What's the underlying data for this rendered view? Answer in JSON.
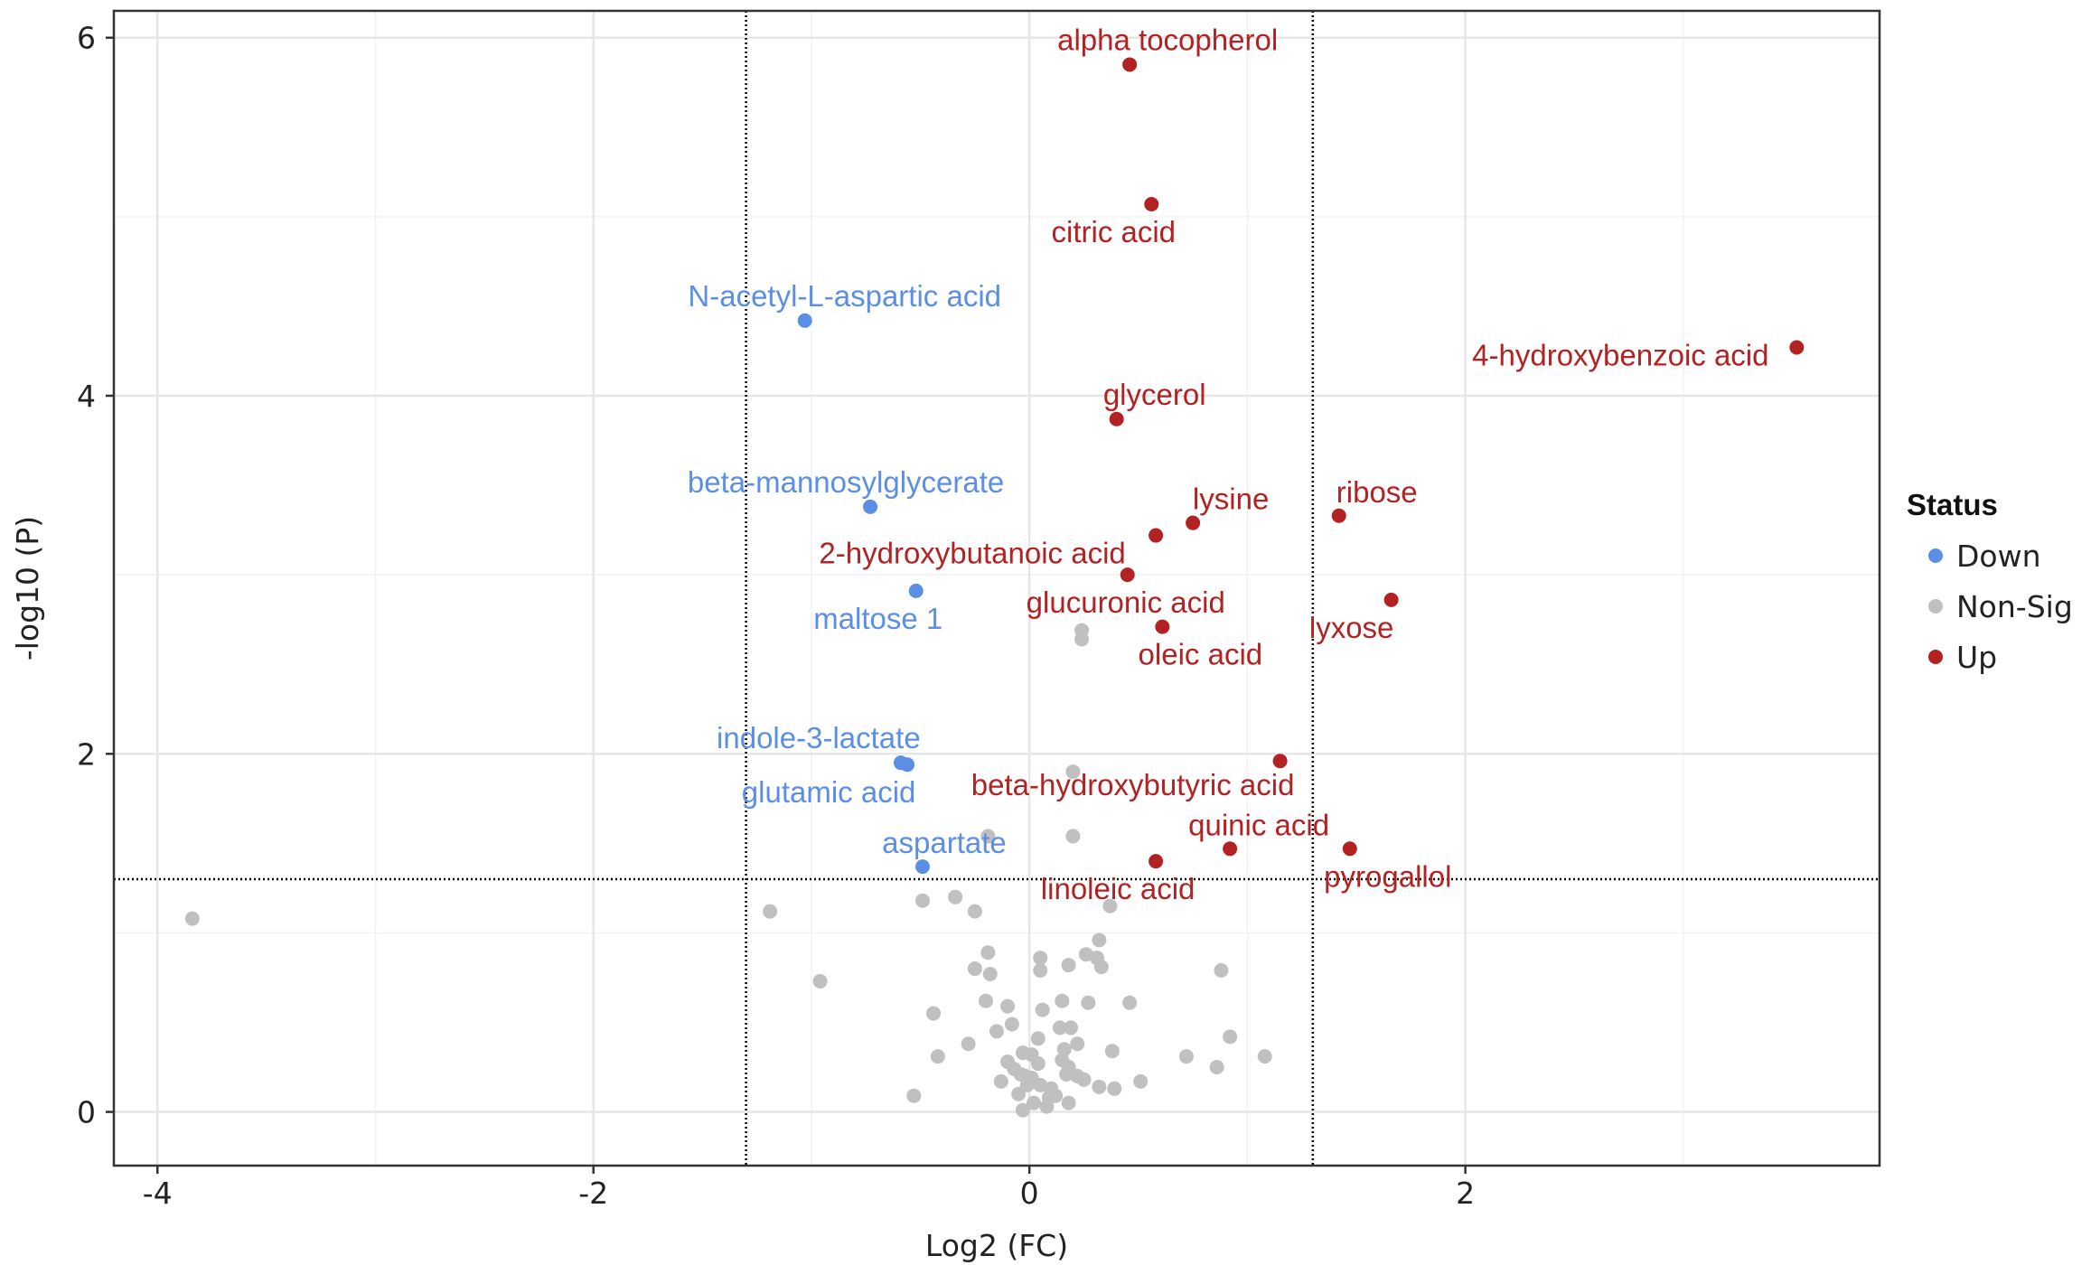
{
  "chart_data": {
    "type": "scatter",
    "xlabel": "Log2 (FC)",
    "ylabel": "-log10 (P)",
    "xlim": [
      -4.2,
      3.9
    ],
    "ylim": [
      -0.3,
      6.15
    ],
    "x_ticks": [
      -4,
      -2,
      0,
      2
    ],
    "y_ticks": [
      0,
      2,
      4,
      6
    ],
    "x_tick_labels": [
      "-4",
      "-2",
      "0",
      "2"
    ],
    "y_tick_labels": [
      "0",
      "2",
      "4",
      "6"
    ],
    "grid": true,
    "fc_threshold_lines": [
      -1.3,
      1.3
    ],
    "p_threshold_line": 1.3,
    "legend": {
      "title": "Status",
      "placement": "right",
      "entries": [
        {
          "label": "Down",
          "color": "#5b8fe6"
        },
        {
          "label": "Non-Sig",
          "color": "#c0c0c0"
        },
        {
          "label": "Up",
          "color": "#b22222"
        }
      ]
    },
    "colors": {
      "Down": "#5b8fe6",
      "Non-Sig": "#c0c0c0",
      "Up": "#b22222"
    },
    "series": [
      {
        "name": "Up",
        "points": [
          {
            "x": 0.46,
            "y": 5.85,
            "label": "alpha tocopherol"
          },
          {
            "x": 0.56,
            "y": 5.07,
            "label": "citric acid"
          },
          {
            "x": 3.52,
            "y": 4.27,
            "label": "4-hydroxybenzoic acid"
          },
          {
            "x": 0.4,
            "y": 3.87,
            "label": "glycerol"
          },
          {
            "x": 1.42,
            "y": 3.33,
            "label": "ribose"
          },
          {
            "x": 0.75,
            "y": 3.29,
            "label": "lysine"
          },
          {
            "x": 0.58,
            "y": 3.22,
            "label": "2-hydroxybutanoic acid"
          },
          {
            "x": 0.45,
            "y": 3.0,
            "label": "glucuronic acid"
          },
          {
            "x": 1.66,
            "y": 2.86,
            "label": "lyxose"
          },
          {
            "x": 0.61,
            "y": 2.71,
            "label": "oleic acid"
          },
          {
            "x": 1.15,
            "y": 1.96,
            "label": "beta-hydroxybutyric acid"
          },
          {
            "x": 0.92,
            "y": 1.47,
            "label": "quinic acid"
          },
          {
            "x": 1.47,
            "y": 1.47,
            "label": "pyrogallol"
          },
          {
            "x": 0.58,
            "y": 1.4,
            "label": "linoleic acid"
          }
        ]
      },
      {
        "name": "Down",
        "points": [
          {
            "x": -1.03,
            "y": 4.42,
            "label": "N-acetyl-L-aspartic acid"
          },
          {
            "x": -0.73,
            "y": 3.38,
            "label": "beta-mannosylglycerate"
          },
          {
            "x": -0.52,
            "y": 2.91,
            "label": "maltose 1"
          },
          {
            "x": -0.59,
            "y": 1.95,
            "label": "indole-3-lactate"
          },
          {
            "x": -0.56,
            "y": 1.94,
            "label": "glutamic acid"
          },
          {
            "x": -0.49,
            "y": 1.37,
            "label": "aspartate"
          }
        ]
      },
      {
        "name": "Non-Sig",
        "points": [
          {
            "x": -3.84,
            "y": 1.08
          },
          {
            "x": -1.19,
            "y": 1.12
          },
          {
            "x": -0.96,
            "y": 0.73
          },
          {
            "x": -0.49,
            "y": 1.18
          },
          {
            "x": -0.34,
            "y": 1.2
          },
          {
            "x": -0.25,
            "y": 1.12
          },
          {
            "x": 0.24,
            "y": 2.69
          },
          {
            "x": 0.24,
            "y": 2.64
          },
          {
            "x": 0.2,
            "y": 1.9
          },
          {
            "x": -0.19,
            "y": 1.54
          },
          {
            "x": 0.2,
            "y": 1.54
          },
          {
            "x": 0.37,
            "y": 1.15
          },
          {
            "x": 0.32,
            "y": 0.96
          },
          {
            "x": 0.26,
            "y": 0.88
          },
          {
            "x": 0.31,
            "y": 0.86
          },
          {
            "x": 0.33,
            "y": 0.81
          },
          {
            "x": 0.18,
            "y": 0.82
          },
          {
            "x": 0.05,
            "y": 0.86
          },
          {
            "x": 0.05,
            "y": 0.79
          },
          {
            "x": -0.19,
            "y": 0.89
          },
          {
            "x": -0.25,
            "y": 0.8
          },
          {
            "x": -0.18,
            "y": 0.77
          },
          {
            "x": 0.88,
            "y": 0.79
          },
          {
            "x": -0.44,
            "y": 0.55
          },
          {
            "x": -0.2,
            "y": 0.62
          },
          {
            "x": -0.1,
            "y": 0.59
          },
          {
            "x": 0.06,
            "y": 0.57
          },
          {
            "x": 0.15,
            "y": 0.62
          },
          {
            "x": 0.27,
            "y": 0.61
          },
          {
            "x": 0.46,
            "y": 0.61
          },
          {
            "x": -0.08,
            "y": 0.49
          },
          {
            "x": -0.15,
            "y": 0.45
          },
          {
            "x": 0.14,
            "y": 0.47
          },
          {
            "x": 0.19,
            "y": 0.47
          },
          {
            "x": 0.92,
            "y": 0.42
          },
          {
            "x": -0.28,
            "y": 0.38
          },
          {
            "x": 0.04,
            "y": 0.41
          },
          {
            "x": 0.22,
            "y": 0.38
          },
          {
            "x": -0.42,
            "y": 0.31
          },
          {
            "x": -0.03,
            "y": 0.33
          },
          {
            "x": 0.01,
            "y": 0.32
          },
          {
            "x": 0.16,
            "y": 0.35
          },
          {
            "x": 0.38,
            "y": 0.34
          },
          {
            "x": 0.72,
            "y": 0.31
          },
          {
            "x": 1.08,
            "y": 0.31
          },
          {
            "x": -0.1,
            "y": 0.28
          },
          {
            "x": 0.04,
            "y": 0.27
          },
          {
            "x": 0.18,
            "y": 0.25
          },
          {
            "x": 0.86,
            "y": 0.25
          },
          {
            "x": -0.04,
            "y": 0.21
          },
          {
            "x": 0.01,
            "y": 0.19
          },
          {
            "x": 0.17,
            "y": 0.21
          },
          {
            "x": 0.22,
            "y": 0.2
          },
          {
            "x": -0.13,
            "y": 0.17
          },
          {
            "x": -0.01,
            "y": 0.15
          },
          {
            "x": 0.05,
            "y": 0.15
          },
          {
            "x": 0.32,
            "y": 0.14
          },
          {
            "x": 0.51,
            "y": 0.17
          },
          {
            "x": 0.39,
            "y": 0.13
          },
          {
            "x": -0.05,
            "y": 0.1
          },
          {
            "x": 0.09,
            "y": 0.08
          },
          {
            "x": 0.12,
            "y": 0.09
          },
          {
            "x": -0.53,
            "y": 0.09
          },
          {
            "x": 0.02,
            "y": 0.05
          },
          {
            "x": 0.18,
            "y": 0.05
          },
          {
            "x": -0.03,
            "y": 0.01
          },
          {
            "x": 0.08,
            "y": 0.03
          },
          {
            "x": -0.02,
            "y": 0.2
          },
          {
            "x": 0.1,
            "y": 0.13
          },
          {
            "x": 0.25,
            "y": 0.18
          },
          {
            "x": -0.07,
            "y": 0.24
          },
          {
            "x": 0.15,
            "y": 0.29
          }
        ]
      }
    ]
  }
}
